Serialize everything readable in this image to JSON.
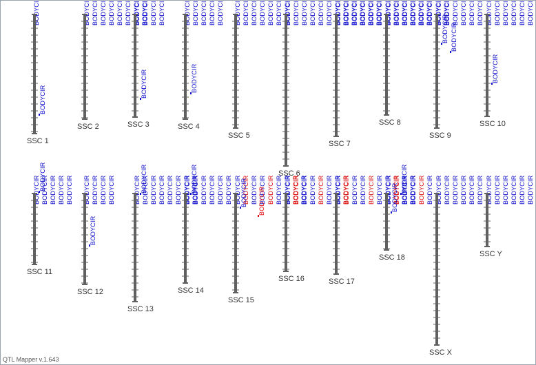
{
  "app": {
    "footer": "QTL Mapper v.1.643"
  },
  "colors": {
    "chromosome": "#606060",
    "tick": "#606060",
    "qtl": "#1010cc",
    "qtl_alt": "#dd1111",
    "label": "#333333"
  },
  "qtl_trait": "BODYCIR",
  "chromosomes": [
    {
      "name": "SSC 1",
      "qtl_count": 1,
      "qtl_labels": [
        {
          "text": "BODYCIR",
          "color": "blue"
        }
      ]
    },
    {
      "name": "SSC 2",
      "qtl_count": 8,
      "qtl_labels": []
    },
    {
      "name": "SSC 3",
      "qtl_count": 4,
      "qtl_labels": [
        {
          "text": "BODYCIR",
          "color": "blue"
        }
      ]
    },
    {
      "name": "SSC 4",
      "qtl_count": 5,
      "qtl_labels": [
        {
          "text": "BODYCIR",
          "color": "blue"
        }
      ]
    },
    {
      "name": "SSC 5",
      "qtl_count": 7,
      "qtl_labels": []
    },
    {
      "name": "SSC 6",
      "qtl_count": 12,
      "qtl_labels": []
    },
    {
      "name": "SSC 7",
      "qtl_count": 12,
      "qtl_labels": []
    },
    {
      "name": "SSC 8",
      "qtl_count": 8,
      "qtl_labels": []
    },
    {
      "name": "SSC 9",
      "qtl_count": 6,
      "qtl_labels": [
        {
          "text": "BODYCIR",
          "color": "blue"
        },
        {
          "text": "BODYCIR",
          "color": "blue"
        }
      ]
    },
    {
      "name": "SSC 10",
      "qtl_count": 8,
      "qtl_labels": [
        {
          "text": "BODYCIR",
          "color": "blue"
        }
      ]
    },
    {
      "name": "SSC 11",
      "qtl_count": 5,
      "qtl_labels": [
        {
          "text": "BODYCIR",
          "color": "blue"
        }
      ]
    },
    {
      "name": "SSC 12",
      "qtl_count": 4,
      "qtl_labels": [
        {
          "text": "BODYCIR",
          "color": "blue"
        }
      ]
    },
    {
      "name": "SSC 13",
      "qtl_count": 8,
      "qtl_labels": [
        {
          "text": "BODYCIR",
          "color": "blue"
        }
      ]
    },
    {
      "name": "SSC 14",
      "qtl_count": 6,
      "qtl_labels": [
        {
          "text": "BODYCIR",
          "color": "blue"
        }
      ]
    },
    {
      "name": "SSC 15",
      "qtl_count": 9,
      "qtl_labels": [
        {
          "text": "BODYCIR",
          "color": "blue"
        },
        {
          "text": "BODYCIR",
          "color": "red"
        }
      ]
    },
    {
      "name": "SSC 16",
      "qtl_count": 8,
      "qtl_labels": []
    },
    {
      "name": "SSC 17",
      "qtl_count": 10,
      "qtl_labels": []
    },
    {
      "name": "SSC 18",
      "qtl_count": 6,
      "qtl_labels": [
        {
          "text": "BODYCIR",
          "color": "blue"
        },
        {
          "text": "BODYCIR",
          "color": "blue"
        }
      ]
    },
    {
      "name": "SSC X",
      "qtl_count": 6,
      "qtl_labels": []
    },
    {
      "name": "SSC Y",
      "qtl_count": 10,
      "qtl_labels": []
    }
  ]
}
